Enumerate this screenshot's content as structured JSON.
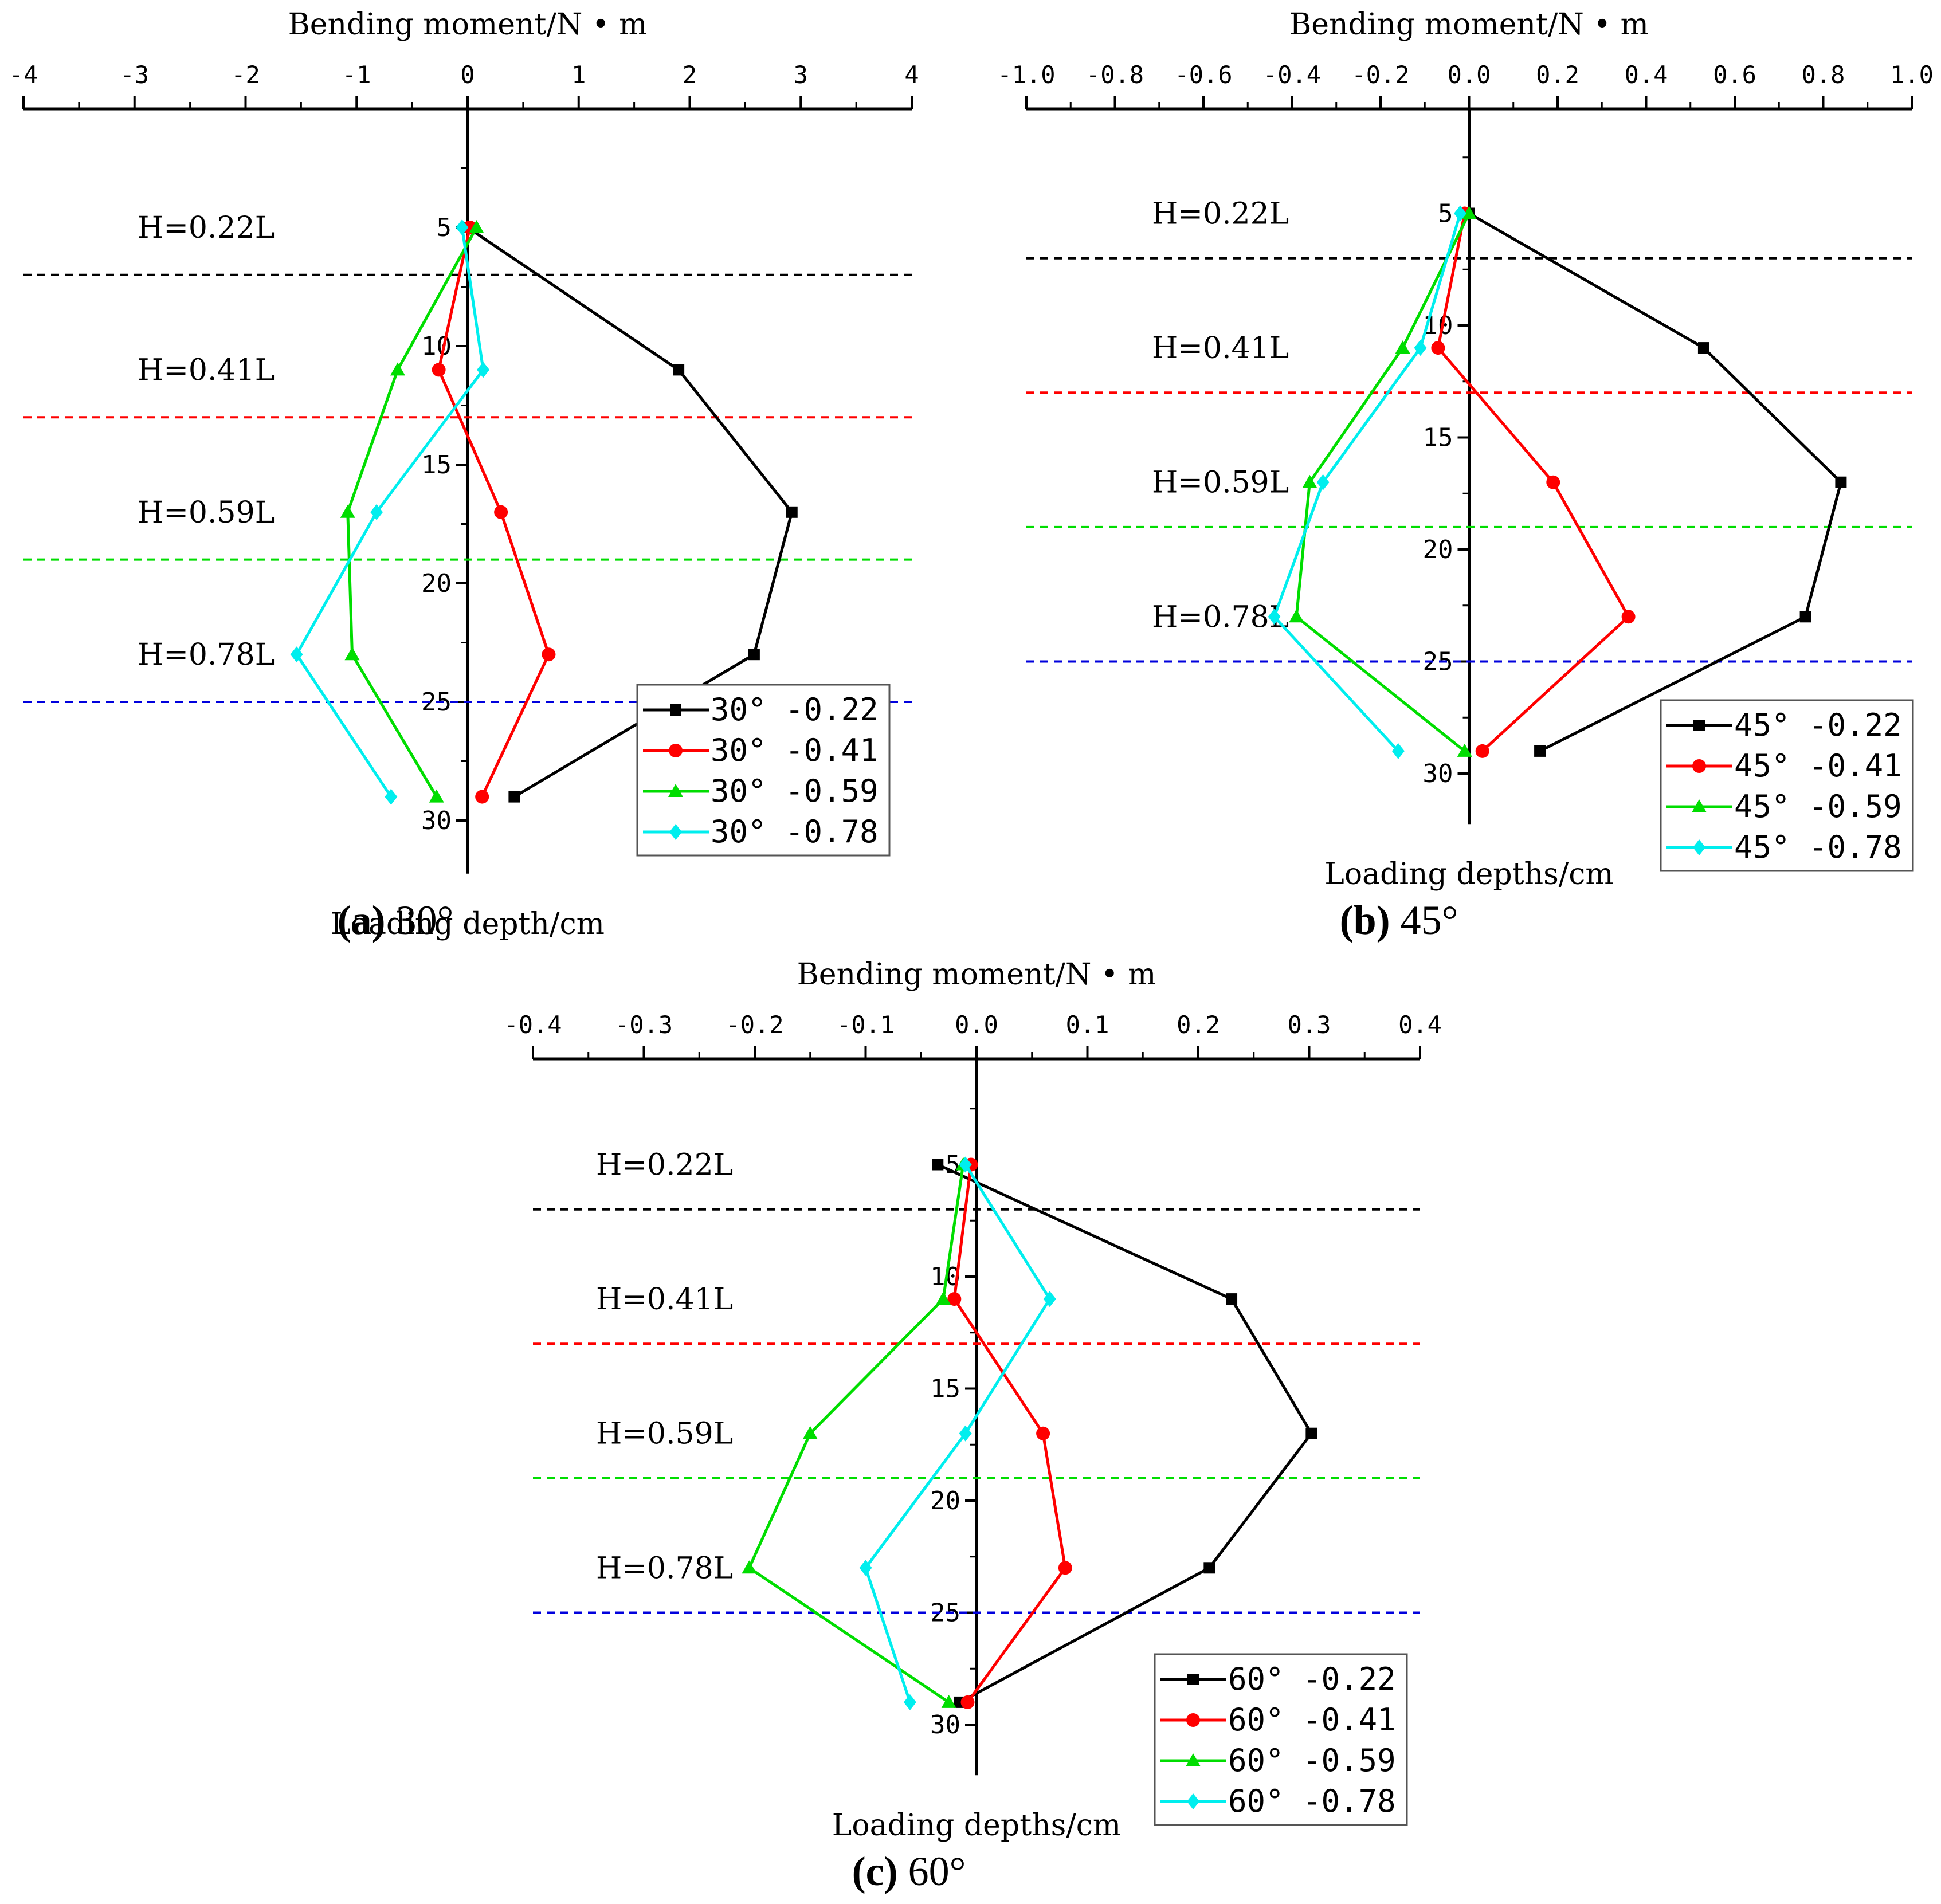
{
  "chart_data": [
    {
      "type": "line",
      "caption_letter": "(a)",
      "caption_text": " 30°",
      "xlabel": "Bending moment/N • m",
      "ylabel": "Loading depth/cm",
      "xlim": [
        -4,
        4
      ],
      "ylim": [
        0,
        32
      ],
      "x_ticks": [
        "-4",
        "-3",
        "-2",
        "-1",
        "0",
        "1",
        "2",
        "3",
        "4"
      ],
      "y_ticks": [
        "5",
        "10",
        "15",
        "20",
        "25",
        "30"
      ],
      "y": [
        5,
        11,
        17,
        23,
        29
      ],
      "levels": [
        {
          "label": "H=0.22L",
          "label_depth": 5,
          "line_depth": 7,
          "color": "#000000"
        },
        {
          "label": "H=0.41L",
          "label_depth": 11,
          "line_depth": 13,
          "color": "#ff0000"
        },
        {
          "label": "H=0.59L",
          "label_depth": 17,
          "line_depth": 19,
          "color": "#00dd00"
        },
        {
          "label": "H=0.78L",
          "label_depth": 23,
          "line_depth": 25,
          "color": "#0000dd"
        }
      ],
      "legend_position": "bottom-right",
      "series": [
        {
          "name": "30° -0.22",
          "marker": "square",
          "color": "#000000",
          "values": [
            0.0,
            1.9,
            2.92,
            2.58,
            0.42
          ]
        },
        {
          "name": "30° -0.41",
          "marker": "circle",
          "color": "#ff0000",
          "values": [
            0.02,
            -0.26,
            0.3,
            0.73,
            0.13
          ]
        },
        {
          "name": "30° -0.59",
          "marker": "triangle",
          "color": "#00dd00",
          "values": [
            0.08,
            -0.63,
            -1.08,
            -1.04,
            -0.28
          ]
        },
        {
          "name": "30° -0.78",
          "marker": "diamond",
          "color": "#00eeee",
          "values": [
            -0.05,
            0.14,
            -0.82,
            -1.54,
            -0.69
          ]
        }
      ]
    },
    {
      "type": "line",
      "caption_letter": "(b)",
      "caption_text": " 45°",
      "xlabel": "Bending moment/N • m",
      "ylabel": "Loading depths/cm",
      "xlim": [
        -1.0,
        1.0
      ],
      "ylim": [
        0,
        32
      ],
      "x_ticks": [
        "-1.0",
        "-0.8",
        "-0.6",
        "-0.4",
        "-0.2",
        "0.0",
        "0.2",
        "0.4",
        "0.6",
        "0.8",
        "1.0"
      ],
      "y_ticks": [
        "5",
        "10",
        "15",
        "20",
        "25",
        "30"
      ],
      "y": [
        5,
        11,
        17,
        23,
        29
      ],
      "levels": [
        {
          "label": "H=0.22L",
          "label_depth": 5,
          "line_depth": 7,
          "color": "#000000"
        },
        {
          "label": "H=0.41L",
          "label_depth": 11,
          "line_depth": 13,
          "color": "#ff0000"
        },
        {
          "label": "H=0.59L",
          "label_depth": 17,
          "line_depth": 19,
          "color": "#00dd00"
        },
        {
          "label": "H=0.78L",
          "label_depth": 23,
          "line_depth": 25,
          "color": "#0000dd"
        }
      ],
      "legend_position": "bottom-right",
      "series": [
        {
          "name": "45° -0.22",
          "marker": "square",
          "color": "#000000",
          "values": [
            0.0,
            0.53,
            0.84,
            0.76,
            0.16
          ]
        },
        {
          "name": "45° -0.41",
          "marker": "circle",
          "color": "#ff0000",
          "values": [
            -0.01,
            -0.07,
            0.19,
            0.36,
            0.03
          ]
        },
        {
          "name": "45° -0.59",
          "marker": "triangle",
          "color": "#00dd00",
          "values": [
            0.0,
            -0.15,
            -0.36,
            -0.39,
            -0.01
          ]
        },
        {
          "name": "45° -0.78",
          "marker": "diamond",
          "color": "#00eeee",
          "values": [
            -0.02,
            -0.11,
            -0.33,
            -0.44,
            -0.16
          ]
        }
      ]
    },
    {
      "type": "line",
      "caption_letter": "(c)",
      "caption_text": " 60°",
      "xlabel": "Bending moment/N • m",
      "ylabel": "Loading depths/cm",
      "xlim": [
        -0.4,
        0.4
      ],
      "ylim": [
        0,
        32
      ],
      "x_ticks": [
        "-0.4",
        "-0.3",
        "-0.2",
        "-0.1",
        "0.0",
        "0.1",
        "0.2",
        "0.3",
        "0.4"
      ],
      "y_ticks": [
        "5",
        "10",
        "15",
        "20",
        "25",
        "30"
      ],
      "y": [
        5,
        11,
        17,
        23,
        29
      ],
      "levels": [
        {
          "label": "H=0.22L",
          "label_depth": 5,
          "line_depth": 7,
          "color": "#000000"
        },
        {
          "label": "H=0.41L",
          "label_depth": 11,
          "line_depth": 13,
          "color": "#ff0000"
        },
        {
          "label": "H=0.59L",
          "label_depth": 17,
          "line_depth": 19,
          "color": "#00dd00"
        },
        {
          "label": "H=0.78L",
          "label_depth": 23,
          "line_depth": 25,
          "color": "#0000dd"
        }
      ],
      "legend_position": "bottom-right",
      "series": [
        {
          "name": "60° -0.22",
          "marker": "square",
          "color": "#000000",
          "values": [
            -0.035,
            0.23,
            0.302,
            0.21,
            -0.015
          ]
        },
        {
          "name": "60° -0.41",
          "marker": "circle",
          "color": "#ff0000",
          "values": [
            -0.005,
            -0.02,
            0.06,
            0.08,
            -0.008
          ]
        },
        {
          "name": "60° -0.59",
          "marker": "triangle",
          "color": "#00dd00",
          "values": [
            -0.012,
            -0.03,
            -0.15,
            -0.205,
            -0.025
          ]
        },
        {
          "name": "60° -0.78",
          "marker": "diamond",
          "color": "#00eeee",
          "values": [
            -0.01,
            0.066,
            -0.01,
            -0.1,
            -0.06
          ]
        }
      ]
    }
  ]
}
